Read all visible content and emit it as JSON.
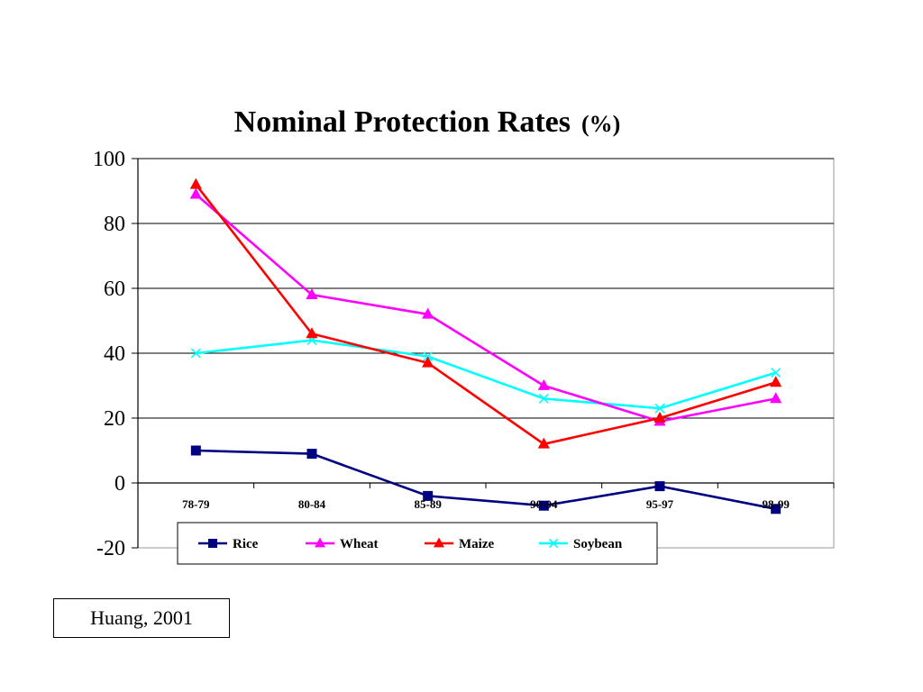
{
  "chart_data": {
    "type": "line",
    "title": "Nominal Protection Rates",
    "title_unit": "(%)",
    "categories": [
      "78-79",
      "80-84",
      "85-89",
      "90-94",
      "95-97",
      "98-99"
    ],
    "ylim": [
      -20,
      100
    ],
    "yticks": [
      "100",
      "80",
      "60",
      "40",
      "20",
      "0",
      "-20"
    ],
    "ytick_values": [
      100,
      80,
      60,
      40,
      20,
      0,
      -20
    ],
    "grid": true,
    "legend_position": "bottom",
    "series": [
      {
        "name": "Rice",
        "values": [
          10,
          9,
          -4,
          -7,
          -1,
          -8
        ],
        "color": "#000080",
        "marker": "square"
      },
      {
        "name": "Wheat",
        "values": [
          89,
          58,
          52,
          30,
          19,
          26
        ],
        "color": "#ff00ff",
        "marker": "triangle"
      },
      {
        "name": "Maize",
        "values": [
          92,
          46,
          37,
          12,
          20,
          31
        ],
        "color": "#ff0000",
        "marker": "triangle"
      },
      {
        "name": "Soybean",
        "values": [
          40,
          44,
          39,
          26,
          23,
          34
        ],
        "color": "#00ffff",
        "marker": "x"
      }
    ]
  },
  "source": {
    "text": "Huang, 2001"
  }
}
